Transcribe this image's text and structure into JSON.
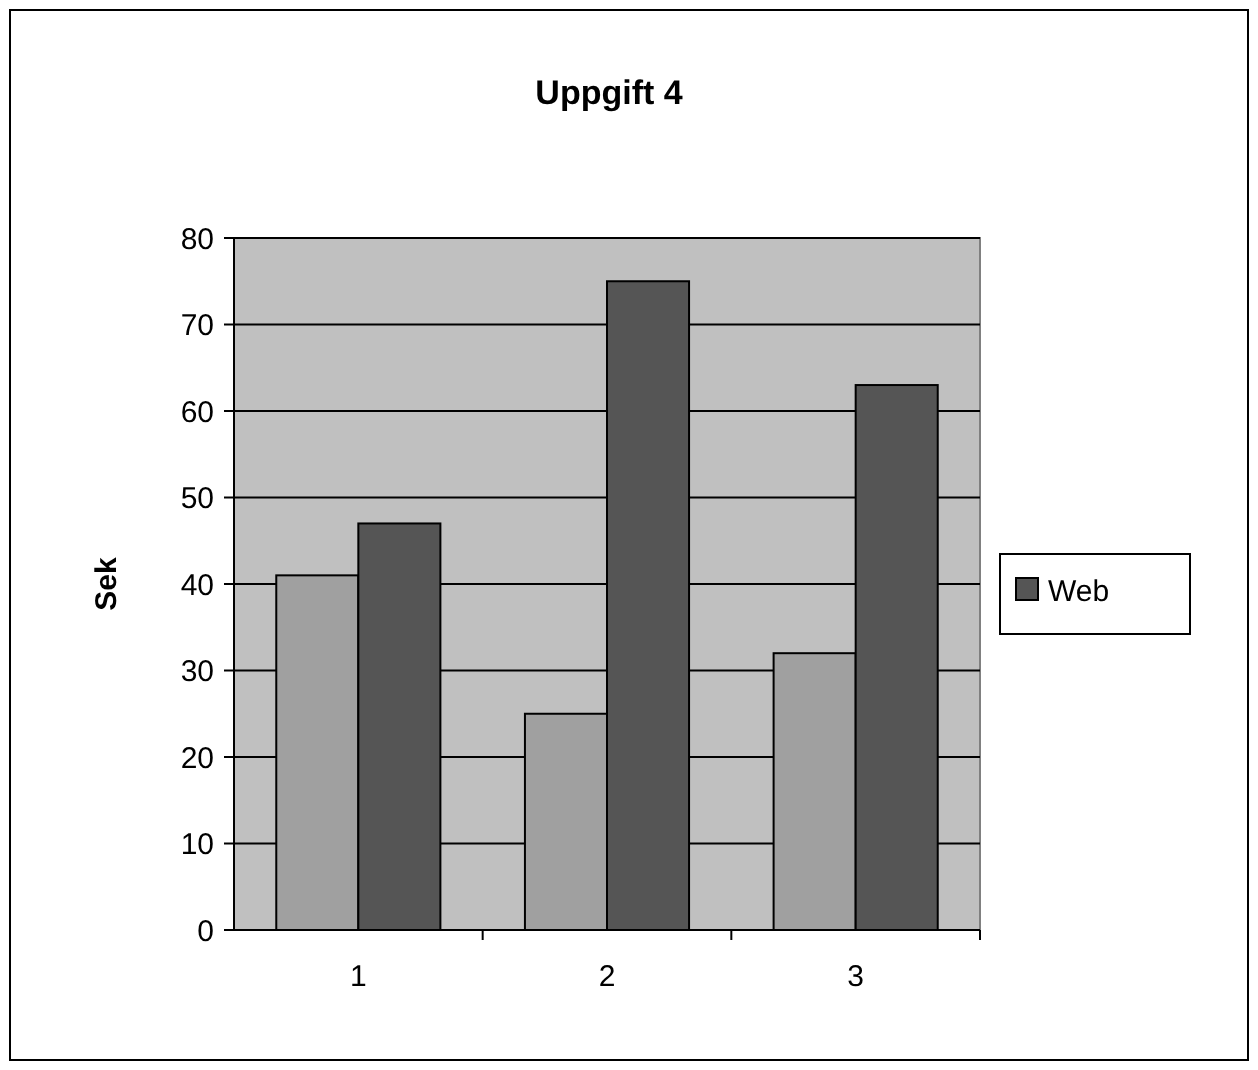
{
  "chart_data": {
    "type": "bar",
    "title": "Uppgift 4",
    "ylabel": "Sek",
    "categories": [
      "1",
      "2",
      "3"
    ],
    "series": [
      {
        "color": "#a0a0a0",
        "values": [
          41,
          25,
          32
        ]
      },
      {
        "name": "Web",
        "color": "#555555",
        "values": [
          47,
          75,
          63
        ]
      }
    ],
    "ylim": [
      0,
      80
    ],
    "yticks": [
      0,
      10,
      20,
      30,
      40,
      50,
      60,
      70,
      80
    ],
    "grid": "y",
    "legend": "right"
  }
}
